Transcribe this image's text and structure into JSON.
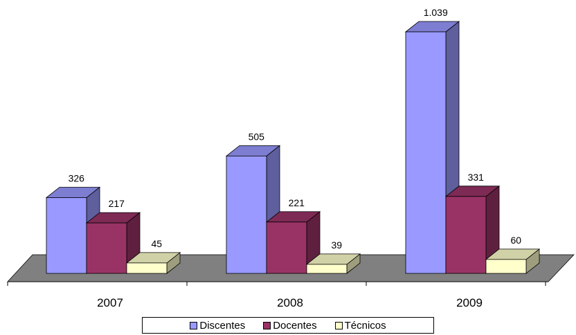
{
  "chart_data": {
    "type": "bar",
    "categories": [
      "2007",
      "2008",
      "2009"
    ],
    "series": [
      {
        "name": "Discentes",
        "values": [
          326,
          505,
          1039
        ],
        "labels": [
          "326",
          "505",
          "1.039"
        ],
        "color": "#9999ff"
      },
      {
        "name": "Docentes",
        "values": [
          217,
          221,
          331
        ],
        "labels": [
          "217",
          "221",
          "331"
        ],
        "color": "#993366"
      },
      {
        "name": "Técnicos",
        "values": [
          45,
          39,
          60
        ],
        "labels": [
          "45",
          "39",
          "60"
        ],
        "color": "#ffffcc"
      }
    ],
    "title": "",
    "xlabel": "",
    "ylabel": "",
    "ylim": [
      0,
      1039
    ],
    "grid": false,
    "legend_position": "bottom",
    "style": "3d-clustered-bar"
  }
}
